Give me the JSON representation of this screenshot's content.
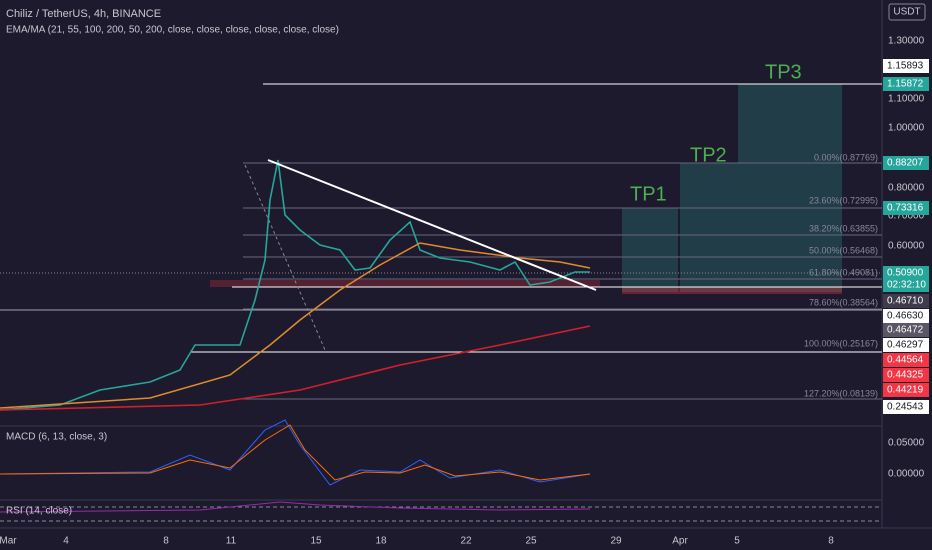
{
  "header": {
    "symbol": "Chiliz / TetherUS, 4h, BINANCE",
    "indicator": "EMA/MA (21, 55, 100, 200, 50, 200, close, close, close, close, close, close)"
  },
  "currency": "USDT",
  "price_axis": [
    "1.30000",
    "1.10000",
    "1.00000",
    "0.80000",
    "0.70000",
    "0.60000"
  ],
  "price_tags": [
    "1.15893",
    "1.15872",
    "0.88207",
    "0.73316",
    "0.50900",
    "02:32:10",
    "0.46710",
    "0.46630",
    "0.46472",
    "0.46297",
    "0.44564",
    "0.44325",
    "0.44219",
    "0.24543"
  ],
  "fib_levels": [
    "0.00%(0.87769)",
    "23.60%(0.72995)",
    "38.20%(0.63855)",
    "50.00%(0.56468)",
    "61.80%(0.49081)",
    "78.60%(0.38564)",
    "100.00%(0.25167)",
    "127.20%(0.08139)"
  ],
  "targets": [
    "TP1",
    "TP2",
    "TP3"
  ],
  "macd": {
    "title": "MACD (6, 13, close, 3)",
    "ticks": [
      "0.05000",
      "0.00000"
    ]
  },
  "rsi": {
    "title": "RSI (14, close)"
  },
  "time_axis": [
    "Mar",
    "4",
    "8",
    "11",
    "15",
    "18",
    "22",
    "25",
    "29",
    "Apr",
    "5",
    "8"
  ]
}
